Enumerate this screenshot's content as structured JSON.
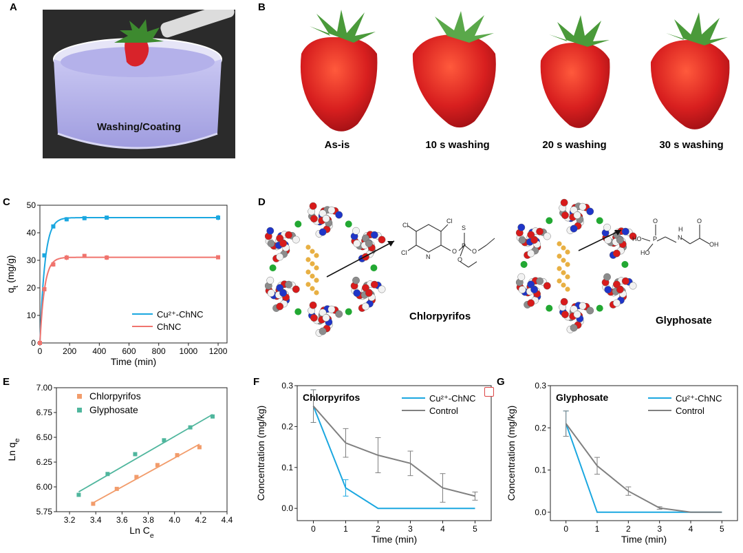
{
  "panels": {
    "a": {
      "letter": "A",
      "caption": "Washing/Coating"
    },
    "b": {
      "letter": "B",
      "captions": [
        "As-is",
        "10 s washing",
        "20 s washing",
        "30 s washing"
      ]
    },
    "c": {
      "letter": "C"
    },
    "d": {
      "letter": "D",
      "labels": [
        "Chlorpyrifos",
        "Glyphosate"
      ]
    },
    "e": {
      "letter": "E"
    },
    "f": {
      "letter": "F"
    },
    "g": {
      "letter": "G"
    }
  },
  "colors": {
    "blue": "#1aa7e0",
    "red": "#f0746e",
    "orange": "#f29c6b",
    "teal": "#4fb69d",
    "gray": "#808080",
    "O_atom": "#d81b1b",
    "N_atom": "#1f35c8",
    "C_atom": "#8c8c8c",
    "H_atom": "#f2f2f2",
    "Cu_atom": "#22a832",
    "pesticide": "#e8b043"
  },
  "chart_data": [
    {
      "id": "C",
      "type": "line",
      "xlabel": "Time (min)",
      "ylabel": "q_t (mg/g)",
      "xlim": [
        0,
        1260
      ],
      "ylim": [
        0,
        50
      ],
      "xticks": [
        "0",
        "200",
        "400",
        "600",
        "800",
        "1000",
        "1200"
      ],
      "yticks": [
        "0",
        "10",
        "20",
        "30",
        "40",
        "50"
      ],
      "legend": "bottom-right",
      "series": [
        {
          "name": "Cu²⁺-ChNC",
          "color": "#1aa7e0",
          "x": [
            0,
            30,
            90,
            180,
            300,
            450,
            1200
          ],
          "y": [
            0,
            31.8,
            42.3,
            44.9,
            45.3,
            45.5,
            45.5
          ],
          "err": [
            0,
            0.4,
            0.5,
            0.8,
            0.5,
            0.6,
            1.0
          ]
        },
        {
          "name": "ChNC",
          "color": "#f0746e",
          "x": [
            0,
            30,
            90,
            180,
            300,
            450,
            1200
          ],
          "y": [
            0,
            19.5,
            28.5,
            31.0,
            31.6,
            31.0,
            31.1
          ],
          "err": [
            0,
            0.5,
            0.8,
            1.0,
            0.6,
            0.9,
            0.3
          ]
        }
      ]
    },
    {
      "id": "E",
      "type": "scatter",
      "xlabel": "Ln C_e",
      "ylabel": "Ln q_e",
      "xlim": [
        3.1,
        4.4
      ],
      "ylim": [
        5.75,
        7.0
      ],
      "xticks": [
        "3.2",
        "3.4",
        "3.6",
        "3.8",
        "4.0",
        "4.2",
        "4.4"
      ],
      "yticks": [
        "5.75",
        "6.00",
        "6.25",
        "6.50",
        "6.75",
        "7.00"
      ],
      "legend": "top-left",
      "series": [
        {
          "name": "Chlorpyrifos",
          "color": "#f29c6b",
          "x": [
            3.38,
            3.56,
            3.71,
            3.87,
            4.02,
            4.19
          ],
          "y": [
            5.83,
            5.98,
            6.1,
            6.22,
            6.32,
            6.4
          ],
          "fit": [
            [
              3.38,
              5.84
            ],
            [
              4.19,
              6.43
            ]
          ]
        },
        {
          "name": "Glyphosate",
          "color": "#4fb69d",
          "x": [
            3.27,
            3.49,
            3.7,
            3.92,
            4.12,
            4.29
          ],
          "y": [
            5.92,
            6.13,
            6.33,
            6.47,
            6.6,
            6.71
          ],
          "fit": [
            [
              3.27,
              5.95
            ],
            [
              4.29,
              6.73
            ]
          ]
        }
      ]
    },
    {
      "id": "F",
      "type": "line",
      "title": "Chlorpyrifos",
      "xlabel": "Time (min)",
      "ylabel": "Concentration (mg/kg)",
      "xlim": [
        -0.5,
        5.5
      ],
      "ylim": [
        -0.03,
        0.3
      ],
      "xticks": [
        "0",
        "1",
        "2",
        "3",
        "4",
        "5"
      ],
      "yticks": [
        "0.0",
        "0.1",
        "0.2",
        "0.3"
      ],
      "legend": "top-right",
      "series": [
        {
          "name": "Cu²⁺-ChNC",
          "color": "#1aa7e0",
          "x": [
            0,
            1,
            2,
            3,
            4,
            5
          ],
          "y": [
            0.25,
            0.05,
            0.0,
            0.0,
            0.0,
            0.0
          ],
          "err": [
            0.04,
            0.02,
            0,
            0,
            0,
            0
          ]
        },
        {
          "name": "Control",
          "color": "#808080",
          "x": [
            0,
            1,
            2,
            3,
            4,
            5
          ],
          "y": [
            0.25,
            0.16,
            0.13,
            0.11,
            0.05,
            0.03
          ],
          "err": [
            0.04,
            0.035,
            0.043,
            0.03,
            0.035,
            0.01
          ]
        }
      ]
    },
    {
      "id": "G",
      "type": "line",
      "title": "Glyphosate",
      "xlabel": "Time (min)",
      "ylabel": "Concentration (mg/kg)",
      "xlim": [
        -0.5,
        5.5
      ],
      "ylim": [
        -0.02,
        0.3
      ],
      "xticks": [
        "0",
        "1",
        "2",
        "3",
        "4",
        "5"
      ],
      "yticks": [
        "0.0",
        "0.1",
        "0.2",
        "0.3"
      ],
      "legend": "top-right",
      "series": [
        {
          "name": "Cu²⁺-ChNC",
          "color": "#1aa7e0",
          "x": [
            0,
            1,
            2,
            3,
            4,
            5
          ],
          "y": [
            0.21,
            0.0,
            0.0,
            0.0,
            0.0,
            0.0
          ],
          "err": [
            0.03,
            0,
            0,
            0,
            0,
            0
          ]
        },
        {
          "name": "Control",
          "color": "#808080",
          "x": [
            0,
            1,
            2,
            3,
            4,
            5
          ],
          "y": [
            0.21,
            0.11,
            0.05,
            0.01,
            0.0,
            0.0
          ],
          "err": [
            0.03,
            0.02,
            0.01,
            0.003,
            0,
            0
          ]
        }
      ]
    }
  ],
  "molecules": {
    "chlorpyrifos_atoms": [
      "Cl",
      "Cl",
      "Cl",
      "N",
      "O",
      "P",
      "S",
      "O",
      "O"
    ],
    "glyphosate_atoms": [
      "O",
      "P",
      "HO",
      "HO",
      "N",
      "H",
      "O",
      "OH"
    ]
  }
}
